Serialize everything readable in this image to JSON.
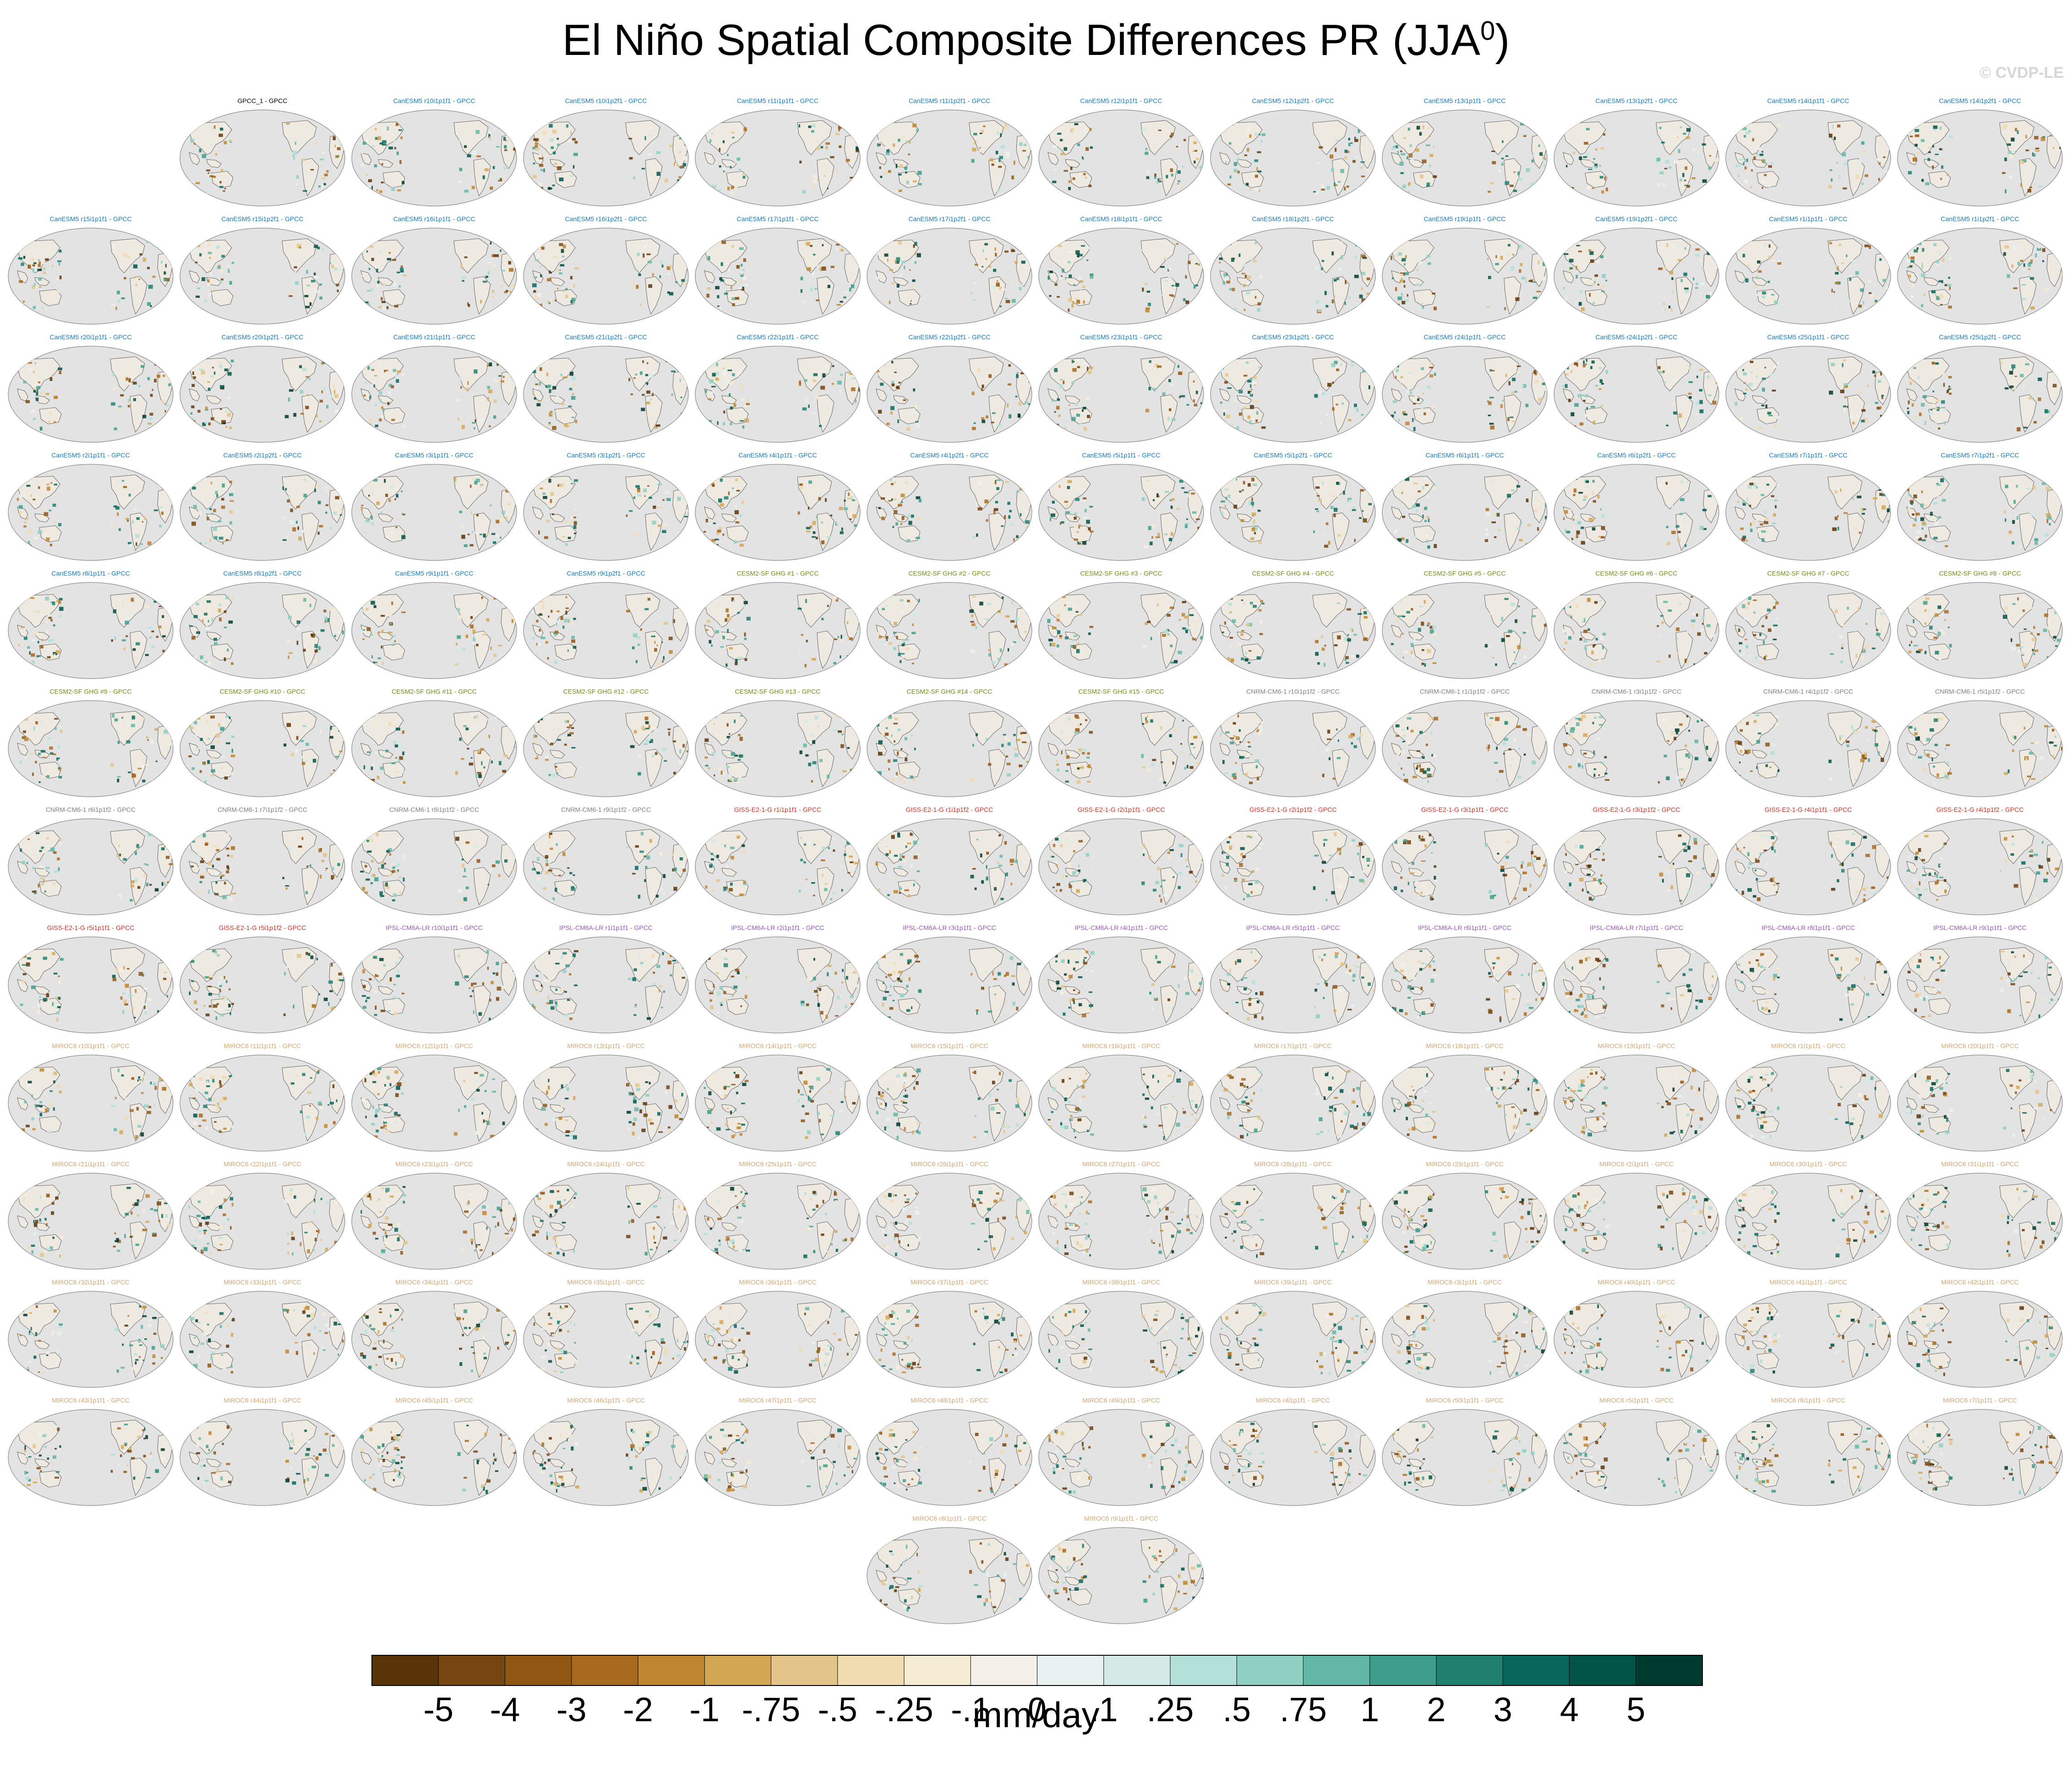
{
  "page_title": {
    "main": "El Niño Spatial Composite Differences PR (JJA",
    "sup": "0",
    "close": ")"
  },
  "watermark": "© CVDP-LE",
  "colors": {
    "CanESM5": "#1f77b4",
    "CESM2-SF GHG": "#6b8e23",
    "CNRM-CM6-1": "#808080",
    "GISS-E2-1-G": "#c0392b",
    "IPSL-CM6A-LR": "#9b59b6",
    "MIROC6": "#d2a679",
    "obs": "#000000",
    "ocean": "#e3e3e3",
    "coast": "#444444"
  },
  "chart_data": {
    "type": "heatmap",
    "title": "El Niño Spatial Composite Differences PR (JJA0)",
    "projection": "global map (Robinson-like), Pacific-centered",
    "colorbar": {
      "label": "mm/day",
      "ticks": [
        "-5",
        "-4",
        "-3",
        "-2",
        "-1",
        "-.75",
        "-.5",
        "-.25",
        "-.1",
        "0",
        ".1",
        ".25",
        ".5",
        ".75",
        "1",
        "2",
        "3",
        "4",
        "5"
      ],
      "colors": [
        "#5a3409",
        "#77450f",
        "#8f5614",
        "#a86a1f",
        "#c0862f",
        "#d3a653",
        "#e4c589",
        "#f0dcb0",
        "#f6ecd3",
        "#f4f0e9",
        "#e8f2f0",
        "#d3eae6",
        "#b3e0d8",
        "#8fd0c3",
        "#63b7a6",
        "#3f9d8c",
        "#1f8070",
        "#08675a",
        "#025446",
        "#00392d"
      ]
    },
    "panels": [
      {
        "label": "GPCC_1 - GPCC",
        "model": "obs"
      },
      {
        "label": "CanESM5 r10i1p1f1 - GPCC",
        "model": "CanESM5"
      },
      {
        "label": "CanESM5 r10i1p2f1 - GPCC",
        "model": "CanESM5"
      },
      {
        "label": "CanESM5 r11i1p1f1 - GPCC",
        "model": "CanESM5"
      },
      {
        "label": "CanESM5 r11i1p2f1 - GPCC",
        "model": "CanESM5"
      },
      {
        "label": "CanESM5 r12i1p1f1 - GPCC",
        "model": "CanESM5"
      },
      {
        "label": "CanESM5 r12i1p2f1 - GPCC",
        "model": "CanESM5"
      },
      {
        "label": "CanESM5 r13i1p1f1 - GPCC",
        "model": "CanESM5"
      },
      {
        "label": "CanESM5 r13i1p2f1 - GPCC",
        "model": "CanESM5"
      },
      {
        "label": "CanESM5 r14i1p1f1 - GPCC",
        "model": "CanESM5"
      },
      {
        "label": "CanESM5 r14i1p2f1 - GPCC",
        "model": "CanESM5"
      },
      {
        "label": "CanESM5 r15i1p1f1 - GPCC",
        "model": "CanESM5"
      },
      {
        "label": "CanESM5 r15i1p2f1 - GPCC",
        "model": "CanESM5"
      },
      {
        "label": "CanESM5 r16i1p1f1 - GPCC",
        "model": "CanESM5"
      },
      {
        "label": "CanESM5 r16i1p2f1 - GPCC",
        "model": "CanESM5"
      },
      {
        "label": "CanESM5 r17i1p1f1 - GPCC",
        "model": "CanESM5"
      },
      {
        "label": "CanESM5 r17i1p2f1 - GPCC",
        "model": "CanESM5"
      },
      {
        "label": "CanESM5 r18i1p1f1 - GPCC",
        "model": "CanESM5"
      },
      {
        "label": "CanESM5 r18i1p2f1 - GPCC",
        "model": "CanESM5"
      },
      {
        "label": "CanESM5 r19i1p1f1 - GPCC",
        "model": "CanESM5"
      },
      {
        "label": "CanESM5 r19i1p2f1 - GPCC",
        "model": "CanESM5"
      },
      {
        "label": "CanESM5 r1i1p1f1 - GPCC",
        "model": "CanESM5"
      },
      {
        "label": "CanESM5 r1i1p2f1 - GPCC",
        "model": "CanESM5"
      },
      {
        "label": "CanESM5 r20i1p1f1 - GPCC",
        "model": "CanESM5"
      },
      {
        "label": "CanESM5 r20i1p2f1 - GPCC",
        "model": "CanESM5"
      },
      {
        "label": "CanESM5 r21i1p1f1 - GPCC",
        "model": "CanESM5"
      },
      {
        "label": "CanESM5 r21i1p2f1 - GPCC",
        "model": "CanESM5"
      },
      {
        "label": "CanESM5 r22i1p1f1 - GPCC",
        "model": "CanESM5"
      },
      {
        "label": "CanESM5 r22i1p2f1 - GPCC",
        "model": "CanESM5"
      },
      {
        "label": "CanESM5 r23i1p1f1 - GPCC",
        "model": "CanESM5"
      },
      {
        "label": "CanESM5 r23i1p2f1 - GPCC",
        "model": "CanESM5"
      },
      {
        "label": "CanESM5 r24i1p1f1 - GPCC",
        "model": "CanESM5"
      },
      {
        "label": "CanESM5 r24i1p2f1 - GPCC",
        "model": "CanESM5"
      },
      {
        "label": "CanESM5 r25i1p1f1 - GPCC",
        "model": "CanESM5"
      },
      {
        "label": "CanESM5 r25i1p2f1 - GPCC",
        "model": "CanESM5"
      },
      {
        "label": "CanESM5 r2i1p1f1 - GPCC",
        "model": "CanESM5"
      },
      {
        "label": "CanESM5 r2i1p2f1 - GPCC",
        "model": "CanESM5"
      },
      {
        "label": "CanESM5 r3i1p1f1 - GPCC",
        "model": "CanESM5"
      },
      {
        "label": "CanESM5 r3i1p2f1 - GPCC",
        "model": "CanESM5"
      },
      {
        "label": "CanESM5 r4i1p1f1 - GPCC",
        "model": "CanESM5"
      },
      {
        "label": "CanESM5 r4i1p2f1 - GPCC",
        "model": "CanESM5"
      },
      {
        "label": "CanESM5 r5i1p1f1 - GPCC",
        "model": "CanESM5"
      },
      {
        "label": "CanESM5 r5i1p2f1 - GPCC",
        "model": "CanESM5"
      },
      {
        "label": "CanESM5 r6i1p1f1 - GPCC",
        "model": "CanESM5"
      },
      {
        "label": "CanESM5 r6i1p2f1 - GPCC",
        "model": "CanESM5"
      },
      {
        "label": "CanESM5 r7i1p1f1 - GPCC",
        "model": "CanESM5"
      },
      {
        "label": "CanESM5 r7i1p2f1 - GPCC",
        "model": "CanESM5"
      },
      {
        "label": "CanESM5 r8i1p1f1 - GPCC",
        "model": "CanESM5"
      },
      {
        "label": "CanESM5 r8i1p2f1 - GPCC",
        "model": "CanESM5"
      },
      {
        "label": "CanESM5 r9i1p1f1 - GPCC",
        "model": "CanESM5"
      },
      {
        "label": "CanESM5 r9i1p2f1 - GPCC",
        "model": "CanESM5"
      },
      {
        "label": "CESM2-SF GHG #1 - GPCC",
        "model": "CESM2-SF GHG"
      },
      {
        "label": "CESM2-SF GHG #2 - GPCC",
        "model": "CESM2-SF GHG"
      },
      {
        "label": "CESM2-SF GHG #3 - GPCC",
        "model": "CESM2-SF GHG"
      },
      {
        "label": "CESM2-SF GHG #4 - GPCC",
        "model": "CESM2-SF GHG"
      },
      {
        "label": "CESM2-SF GHG #5 - GPCC",
        "model": "CESM2-SF GHG"
      },
      {
        "label": "CESM2-SF GHG #6 - GPCC",
        "model": "CESM2-SF GHG"
      },
      {
        "label": "CESM2-SF GHG #7 - GPCC",
        "model": "CESM2-SF GHG"
      },
      {
        "label": "CESM2-SF GHG #8 - GPCC",
        "model": "CESM2-SF GHG"
      },
      {
        "label": "CESM2-SF GHG #9 - GPCC",
        "model": "CESM2-SF GHG"
      },
      {
        "label": "CESM2-SF GHG #10 - GPCC",
        "model": "CESM2-SF GHG"
      },
      {
        "label": "CESM2-SF GHG #11 - GPCC",
        "model": "CESM2-SF GHG"
      },
      {
        "label": "CESM2-SF GHG #12 - GPCC",
        "model": "CESM2-SF GHG"
      },
      {
        "label": "CESM2-SF GHG #13 - GPCC",
        "model": "CESM2-SF GHG"
      },
      {
        "label": "CESM2-SF GHG #14 - GPCC",
        "model": "CESM2-SF GHG"
      },
      {
        "label": "CESM2-SF GHG #15 - GPCC",
        "model": "CESM2-SF GHG"
      },
      {
        "label": "CNRM-CM6-1 r10i1p1f2 - GPCC",
        "model": "CNRM-CM6-1"
      },
      {
        "label": "CNRM-CM6-1 r1i1p1f2 - GPCC",
        "model": "CNRM-CM6-1"
      },
      {
        "label": "CNRM-CM6-1 r3i1p1f2 - GPCC",
        "model": "CNRM-CM6-1"
      },
      {
        "label": "CNRM-CM6-1 r4i1p1f2 - GPCC",
        "model": "CNRM-CM6-1"
      },
      {
        "label": "CNRM-CM6-1 r5i1p1f2 - GPCC",
        "model": "CNRM-CM6-1"
      },
      {
        "label": "CNRM-CM6-1 r6i1p1f2 - GPCC",
        "model": "CNRM-CM6-1"
      },
      {
        "label": "CNRM-CM6-1 r7i1p1f2 - GPCC",
        "model": "CNRM-CM6-1"
      },
      {
        "label": "CNRM-CM6-1 r8i1p1f2 - GPCC",
        "model": "CNRM-CM6-1"
      },
      {
        "label": "CNRM-CM6-1 r9i1p1f2 - GPCC",
        "model": "CNRM-CM6-1"
      },
      {
        "label": "GISS-E2-1-G r1i1p1f1 - GPCC",
        "model": "GISS-E2-1-G"
      },
      {
        "label": "GISS-E2-1-G r1i1p1f2 - GPCC",
        "model": "GISS-E2-1-G"
      },
      {
        "label": "GISS-E2-1-G r2i1p1f1 - GPCC",
        "model": "GISS-E2-1-G"
      },
      {
        "label": "GISS-E2-1-G r2i1p1f2 - GPCC",
        "model": "GISS-E2-1-G"
      },
      {
        "label": "GISS-E2-1-G r3i1p1f1 - GPCC",
        "model": "GISS-E2-1-G"
      },
      {
        "label": "GISS-E2-1-G r3i1p1f2 - GPCC",
        "model": "GISS-E2-1-G"
      },
      {
        "label": "GISS-E2-1-G r4i1p1f1 - GPCC",
        "model": "GISS-E2-1-G"
      },
      {
        "label": "GISS-E2-1-G r4i1p1f2 - GPCC",
        "model": "GISS-E2-1-G"
      },
      {
        "label": "GISS-E2-1-G r5i1p1f1 - GPCC",
        "model": "GISS-E2-1-G"
      },
      {
        "label": "GISS-E2-1-G r5i1p1f2 - GPCC",
        "model": "GISS-E2-1-G"
      },
      {
        "label": "IPSL-CM6A-LR r10i1p1f1 - GPCC",
        "model": "IPSL-CM6A-LR"
      },
      {
        "label": "IPSL-CM6A-LR r1i1p1f1 - GPCC",
        "model": "IPSL-CM6A-LR"
      },
      {
        "label": "IPSL-CM6A-LR r2i1p1f1 - GPCC",
        "model": "IPSL-CM6A-LR"
      },
      {
        "label": "IPSL-CM6A-LR r3i1p1f1 - GPCC",
        "model": "IPSL-CM6A-LR"
      },
      {
        "label": "IPSL-CM6A-LR r4i1p1f1 - GPCC",
        "model": "IPSL-CM6A-LR"
      },
      {
        "label": "IPSL-CM6A-LR r5i1p1f1 - GPCC",
        "model": "IPSL-CM6A-LR"
      },
      {
        "label": "IPSL-CM6A-LR r6i1p1f1 - GPCC",
        "model": "IPSL-CM6A-LR"
      },
      {
        "label": "IPSL-CM6A-LR r7i1p1f1 - GPCC",
        "model": "IPSL-CM6A-LR"
      },
      {
        "label": "IPSL-CM6A-LR r8i1p1f1 - GPCC",
        "model": "IPSL-CM6A-LR"
      },
      {
        "label": "IPSL-CM6A-LR r9i1p1f1 - GPCC",
        "model": "IPSL-CM6A-LR"
      },
      {
        "label": "MIROC6 r10i1p1f1 - GPCC",
        "model": "MIROC6"
      },
      {
        "label": "MIROC6 r11i1p1f1 - GPCC",
        "model": "MIROC6"
      },
      {
        "label": "MIROC6 r12i1p1f1 - GPCC",
        "model": "MIROC6"
      },
      {
        "label": "MIROC6 r13i1p1f1 - GPCC",
        "model": "MIROC6"
      },
      {
        "label": "MIROC6 r14i1p1f1 - GPCC",
        "model": "MIROC6"
      },
      {
        "label": "MIROC6 r15i1p1f1 - GPCC",
        "model": "MIROC6"
      },
      {
        "label": "MIROC6 r16i1p1f1 - GPCC",
        "model": "MIROC6"
      },
      {
        "label": "MIROC6 r17i1p1f1 - GPCC",
        "model": "MIROC6"
      },
      {
        "label": "MIROC6 r18i1p1f1 - GPCC",
        "model": "MIROC6"
      },
      {
        "label": "MIROC6 r19i1p1f1 - GPCC",
        "model": "MIROC6"
      },
      {
        "label": "MIROC6 r1i1p1f1 - GPCC",
        "model": "MIROC6"
      },
      {
        "label": "MIROC6 r20i1p1f1 - GPCC",
        "model": "MIROC6"
      },
      {
        "label": "MIROC6 r21i1p1f1 - GPCC",
        "model": "MIROC6"
      },
      {
        "label": "MIROC6 r22i1p1f1 - GPCC",
        "model": "MIROC6"
      },
      {
        "label": "MIROC6 r23i1p1f1 - GPCC",
        "model": "MIROC6"
      },
      {
        "label": "MIROC6 r24i1p1f1 - GPCC",
        "model": "MIROC6"
      },
      {
        "label": "MIROC6 r25i1p1f1 - GPCC",
        "model": "MIROC6"
      },
      {
        "label": "MIROC6 r26i1p1f1 - GPCC",
        "model": "MIROC6"
      },
      {
        "label": "MIROC6 r27i1p1f1 - GPCC",
        "model": "MIROC6"
      },
      {
        "label": "MIROC6 r28i1p1f1 - GPCC",
        "model": "MIROC6"
      },
      {
        "label": "MIROC6 r29i1p1f1 - GPCC",
        "model": "MIROC6"
      },
      {
        "label": "MIROC6 r2i1p1f1 - GPCC",
        "model": "MIROC6"
      },
      {
        "label": "MIROC6 r30i1p1f1 - GPCC",
        "model": "MIROC6"
      },
      {
        "label": "MIROC6 r31i1p1f1 - GPCC",
        "model": "MIROC6"
      },
      {
        "label": "MIROC6 r32i1p1f1 - GPCC",
        "model": "MIROC6"
      },
      {
        "label": "MIROC6 r33i1p1f1 - GPCC",
        "model": "MIROC6"
      },
      {
        "label": "MIROC6 r34i1p1f1 - GPCC",
        "model": "MIROC6"
      },
      {
        "label": "MIROC6 r35i1p1f1 - GPCC",
        "model": "MIROC6"
      },
      {
        "label": "MIROC6 r36i1p1f1 - GPCC",
        "model": "MIROC6"
      },
      {
        "label": "MIROC6 r37i1p1f1 - GPCC",
        "model": "MIROC6"
      },
      {
        "label": "MIROC6 r38i1p1f1 - GPCC",
        "model": "MIROC6"
      },
      {
        "label": "MIROC6 r39i1p1f1 - GPCC",
        "model": "MIROC6"
      },
      {
        "label": "MIROC6 r3i1p1f1 - GPCC",
        "model": "MIROC6"
      },
      {
        "label": "MIROC6 r40i1p1f1 - GPCC",
        "model": "MIROC6"
      },
      {
        "label": "MIROC6 r41i1p1f1 - GPCC",
        "model": "MIROC6"
      },
      {
        "label": "MIROC6 r42i1p1f1 - GPCC",
        "model": "MIROC6"
      },
      {
        "label": "MIROC6 r43i1p1f1 - GPCC",
        "model": "MIROC6"
      },
      {
        "label": "MIROC6 r44i1p1f1 - GPCC",
        "model": "MIROC6"
      },
      {
        "label": "MIROC6 r45i1p1f1 - GPCC",
        "model": "MIROC6"
      },
      {
        "label": "MIROC6 r46i1p1f1 - GPCC",
        "model": "MIROC6"
      },
      {
        "label": "MIROC6 r47i1p1f1 - GPCC",
        "model": "MIROC6"
      },
      {
        "label": "MIROC6 r48i1p1f1 - GPCC",
        "model": "MIROC6"
      },
      {
        "label": "MIROC6 r49i1p1f1 - GPCC",
        "model": "MIROC6"
      },
      {
        "label": "MIROC6 r4i1p1f1 - GPCC",
        "model": "MIROC6"
      },
      {
        "label": "MIROC6 r50i1p1f1 - GPCC",
        "model": "MIROC6"
      },
      {
        "label": "MIROC6 r5i1p1f1 - GPCC",
        "model": "MIROC6"
      },
      {
        "label": "MIROC6 r6i1p1f1 - GPCC",
        "model": "MIROC6"
      },
      {
        "label": "MIROC6 r7i1p1f1 - GPCC",
        "model": "MIROC6"
      },
      {
        "label": "MIROC6 r8i1p1f1 - GPCC",
        "model": "MIROC6"
      },
      {
        "label": "MIROC6 r9i1p1f1 - GPCC",
        "model": "MIROC6"
      }
    ]
  }
}
